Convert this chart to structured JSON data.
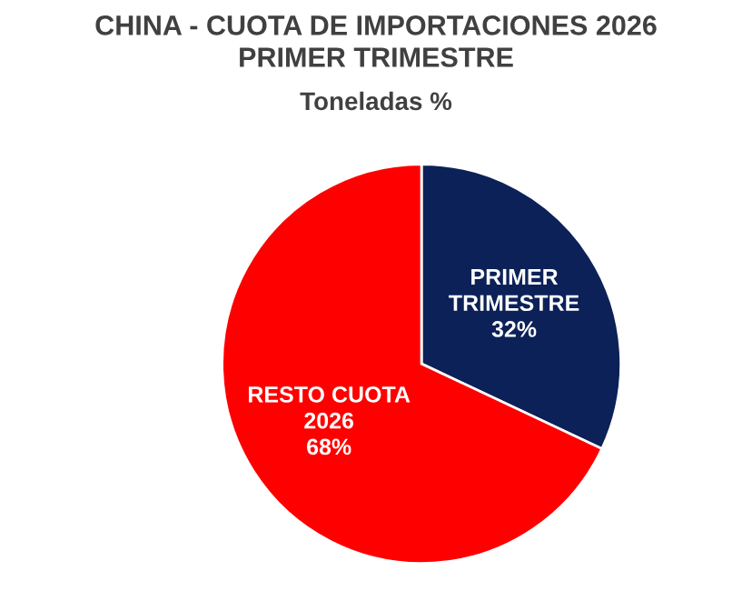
{
  "chart_data": {
    "type": "pie",
    "title": "CHINA - CUOTA DE IMPORTACIONES 2026\nPRIMER TRIMESTRE",
    "subtitle": "Toneladas %",
    "categories": [
      "PRIMER\nTRIMESTRE",
      "RESTO CUOTA\n2026"
    ],
    "values": [
      32,
      68
    ],
    "colors": [
      "#0c2158",
      "#ff0000"
    ],
    "value_labels": [
      "32%",
      "68%"
    ],
    "legend": false
  }
}
